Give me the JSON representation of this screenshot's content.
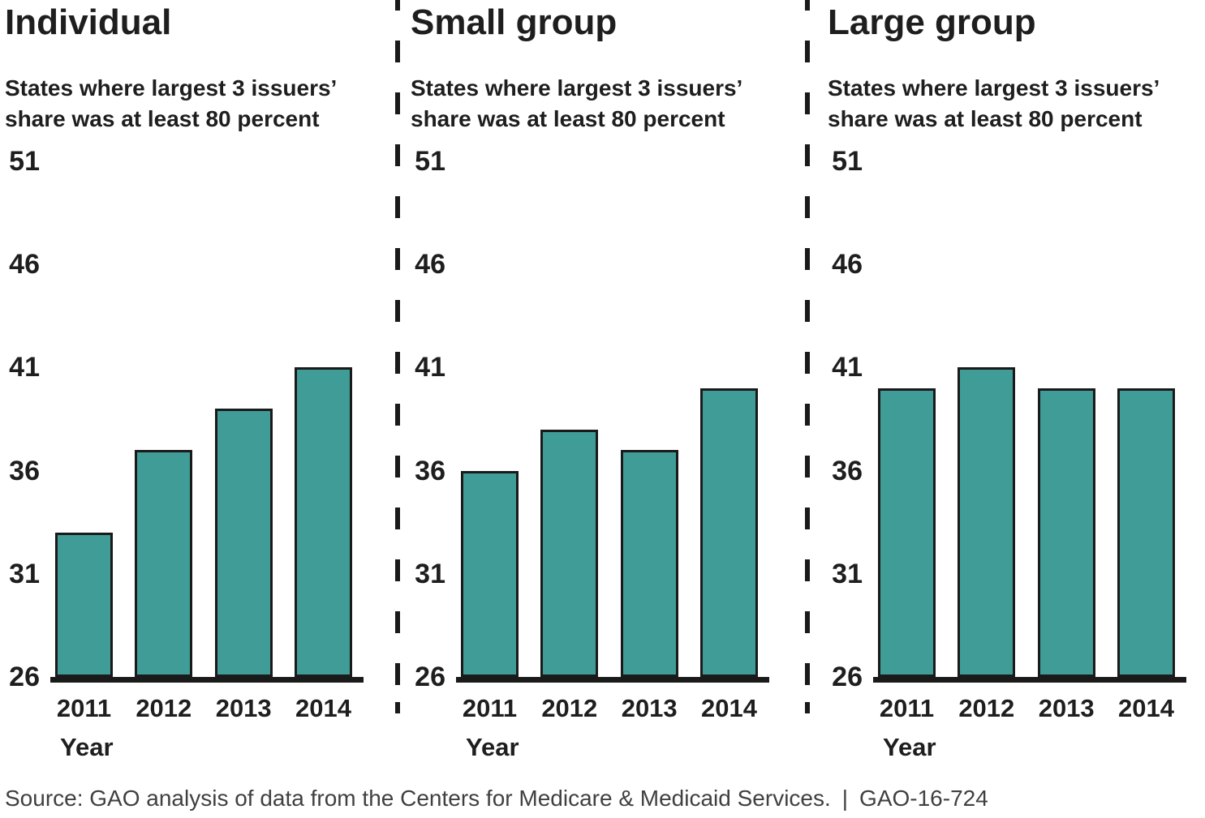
{
  "page": {
    "background": "#ffffff"
  },
  "colors": {
    "bar_fill": "#3F9C96",
    "bar_border": "#1A1A1A",
    "axis_line": "#1A1A1A",
    "separator": "#1A1A1A",
    "text": "#1E1E1E",
    "footer_text": "#404040"
  },
  "footer": {
    "source": "Source: GAO analysis of data from the Centers for Medicare & Medicaid Services.",
    "divider": "|",
    "report_id": "GAO-16-724"
  },
  "chart_data": [
    {
      "type": "bar",
      "title": "Individual",
      "subtitle": "States where largest 3 issuers’ share was at least 80 percent",
      "xlabel": "Year",
      "ylabel": "",
      "categories": [
        "2011",
        "2012",
        "2013",
        "2014"
      ],
      "values": [
        33,
        37,
        39,
        41
      ],
      "ylim": [
        26,
        51
      ],
      "yticks": [
        26,
        31,
        36,
        41,
        46,
        51
      ],
      "grid": false,
      "legend": "none"
    },
    {
      "type": "bar",
      "title": "Small group",
      "subtitle": "States where largest 3 issuers’ share was at least 80 percent",
      "xlabel": "Year",
      "ylabel": "",
      "categories": [
        "2011",
        "2012",
        "2013",
        "2014"
      ],
      "values": [
        36,
        38,
        37,
        40
      ],
      "ylim": [
        26,
        51
      ],
      "yticks": [
        26,
        31,
        36,
        41,
        46,
        51
      ],
      "grid": false,
      "legend": "none"
    },
    {
      "type": "bar",
      "title": "Large group",
      "subtitle": "States where largest 3 issuers’ share was at least 80 percent",
      "xlabel": "Year",
      "ylabel": "",
      "categories": [
        "2011",
        "2012",
        "2013",
        "2014"
      ],
      "values": [
        40,
        41,
        40,
        40
      ],
      "ylim": [
        26,
        51
      ],
      "yticks": [
        26,
        31,
        36,
        41,
        46,
        51
      ],
      "grid": false,
      "legend": "none"
    }
  ]
}
